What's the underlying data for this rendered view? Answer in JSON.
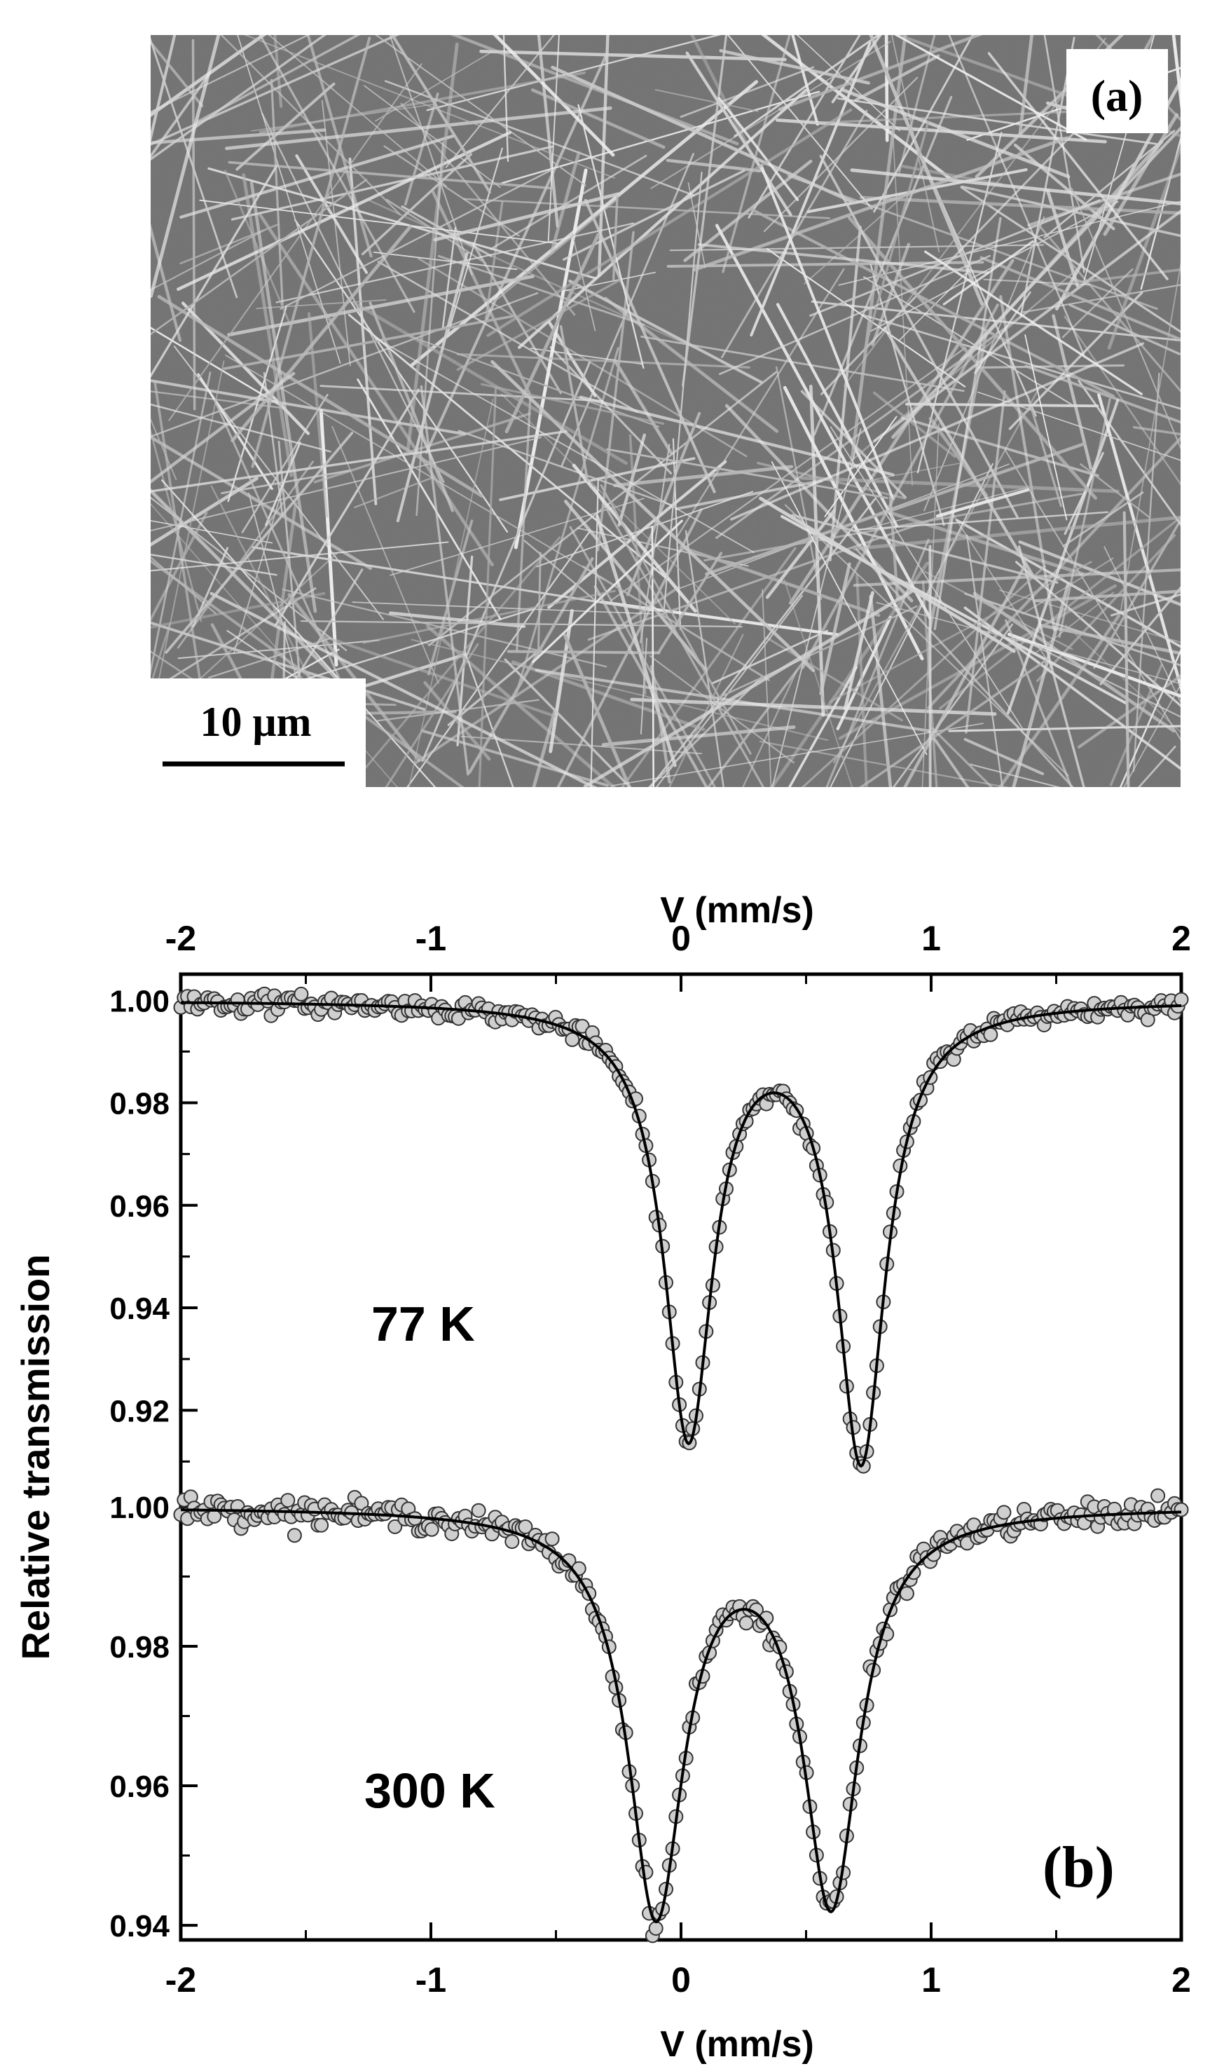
{
  "panel_a": {
    "label": "(a)",
    "scale_bar_label": "10 μm"
  },
  "chart_data": {
    "type": "scatter",
    "panel_label": "(b)",
    "xlabel_top": "V (mm/s)",
    "xlabel_bottom": "V (mm/s)",
    "ylabel": "Relative transmission",
    "xlim": [
      -2,
      2
    ],
    "x_ticks": [
      "-2",
      "-1",
      "0",
      "1",
      "2"
    ],
    "grid": false,
    "legend": "none",
    "subplots": [
      {
        "annotation": "77 K",
        "ylim": [
          0.908,
          1.004
        ],
        "y_ticks": [
          "1.00",
          "0.98",
          "0.96",
          "0.94",
          "0.92"
        ],
        "y_tick_values": [
          1.0,
          0.98,
          0.96,
          0.94,
          0.92
        ],
        "fit": {
          "baseline": 1.0,
          "peaks": [
            {
              "center": 0.03,
              "depth": 0.084,
              "hwhm": 0.118
            },
            {
              "center": 0.72,
              "depth": 0.0885,
              "hwhm": 0.118
            }
          ]
        },
        "x_range_points": [
          -2.0,
          2.0
        ],
        "num_points": 300
      },
      {
        "annotation": "300 K",
        "ylim": [
          0.9385,
          1.0015
        ],
        "y_ticks": [
          "1.00",
          "0.98",
          "0.96",
          "0.94"
        ],
        "y_tick_values": [
          1.0,
          0.98,
          0.96,
          0.94
        ],
        "fit": {
          "baseline": 1.0,
          "peaks": [
            {
              "center": -0.1,
              "depth": 0.0575,
              "hwhm": 0.135
            },
            {
              "center": 0.6,
              "depth": 0.056,
              "hwhm": 0.135
            }
          ]
        },
        "x_range_points": [
          -2.0,
          2.0
        ],
        "num_points": 300
      }
    ]
  },
  "colors": {
    "marker_fill": "#cfcfcf",
    "marker_stroke": "#333333",
    "fit_line": "#000000",
    "sem_background": "#6f6f6f"
  }
}
